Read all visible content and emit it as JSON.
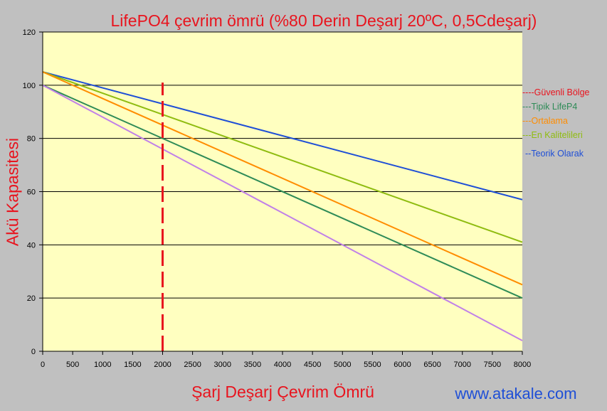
{
  "watermark": "www.atakale.com",
  "chart_data": {
    "type": "line",
    "title": "LifePO4 çevrim ömrü (%80 Derin Deşarj 20ºC, 0,5Cdeşarj)",
    "xlabel": "Şarj Deşarj Çevrim Ömrü",
    "ylabel": "Akü Kapasitesi",
    "xlim": [
      0,
      8000
    ],
    "ylim": [
      0,
      120
    ],
    "x_ticks": [
      0,
      500,
      1000,
      1500,
      2000,
      2500,
      3000,
      3500,
      4000,
      4500,
      5000,
      5500,
      6000,
      6500,
      7000,
      7500,
      8000
    ],
    "y_ticks": [
      0,
      20,
      40,
      60,
      80,
      100,
      120
    ],
    "grid": "horizontal",
    "plot_background": "#ffffc0",
    "legend_position": "right",
    "legend": [
      {
        "label": "----Güvenli Bölge",
        "color": "#e8141e"
      },
      {
        "label": "---Tipik  LifeP4",
        "color": "#2e8b57"
      },
      {
        "label": "---Ortalama",
        "color": "#ff8c00"
      },
      {
        "label": "---En Kalitelileri",
        "color": "#8fbc10"
      },
      {
        "label": "--Teorik Olarak",
        "color": "#1f4fd6"
      }
    ],
    "annotations": [
      {
        "type": "vertical-dashed-line",
        "x": 2000,
        "y_range": [
          0,
          101
        ],
        "color": "#e8141e",
        "name": "Güvenli Bölge"
      }
    ],
    "series": [
      {
        "color": "#1f4fd6",
        "x": [
          0,
          8000
        ],
        "y": [
          105,
          57
        ]
      },
      {
        "color": "#8fbc10",
        "x": [
          0,
          8000
        ],
        "y": [
          105,
          41
        ]
      },
      {
        "color": "#ff8c00",
        "x": [
          0,
          8000
        ],
        "y": [
          105,
          25
        ]
      },
      {
        "color": "#2e8b57",
        "x": [
          0,
          8000
        ],
        "y": [
          100,
          20
        ]
      },
      {
        "color": "#c080e8",
        "x": [
          0,
          8000
        ],
        "y": [
          100,
          4
        ]
      }
    ]
  }
}
